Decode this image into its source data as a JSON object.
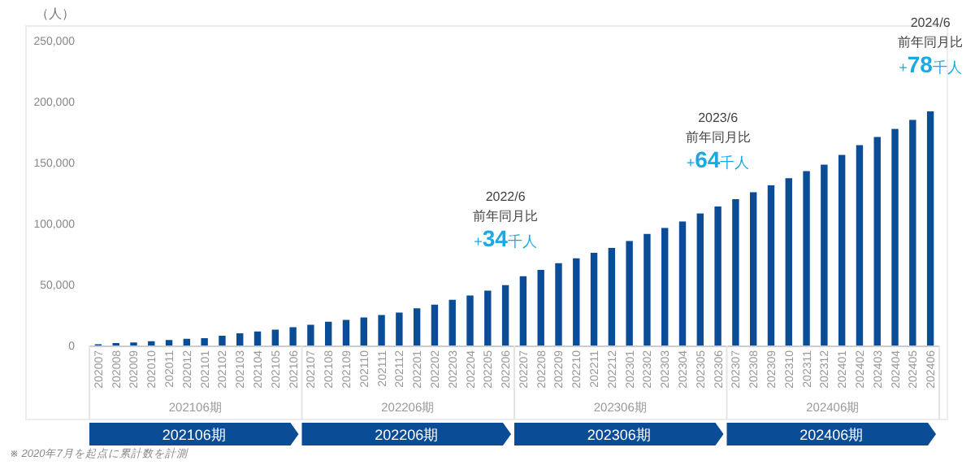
{
  "chart_data": {
    "type": "bar",
    "ylabel": "（人）",
    "categories": [
      "202007",
      "202008",
      "202009",
      "202010",
      "202011",
      "202012",
      "202101",
      "202102",
      "202103",
      "202104",
      "202105",
      "202106",
      "202107",
      "202108",
      "202109",
      "202110",
      "202111",
      "202112",
      "202201",
      "202202",
      "202203",
      "202204",
      "202205",
      "202206",
      "202207",
      "202208",
      "202209",
      "202210",
      "202211",
      "202212",
      "202301",
      "202302",
      "202303",
      "202304",
      "202305",
      "202306",
      "202307",
      "202308",
      "202309",
      "202310",
      "202311",
      "202312",
      "202401",
      "202402",
      "202403",
      "202404",
      "202405",
      "202406"
    ],
    "values": [
      1000,
      2000,
      2500,
      3500,
      4500,
      5500,
      6000,
      8000,
      10000,
      11500,
      13000,
      15000,
      17000,
      19500,
      21000,
      23000,
      25000,
      27000,
      30500,
      33500,
      37500,
      41000,
      45000,
      49500,
      56800,
      62000,
      67500,
      71500,
      76000,
      80000,
      85700,
      91500,
      96400,
      101700,
      108300,
      114000,
      120000,
      125700,
      131400,
      137200,
      143000,
      148300,
      156300,
      164300,
      171000,
      177600,
      185000,
      192000
    ],
    "color": "#0b4c96",
    "ylim": [
      0,
      250000
    ],
    "yticks": [
      0,
      {
        "value": 50000,
        "label": "50,000"
      },
      {
        "value": 100000,
        "label": "100,000"
      },
      {
        "value": 150000,
        "label": "150,000"
      },
      {
        "value": 200000,
        "label": "200,000"
      },
      {
        "value": 250000,
        "label": "250,000"
      }
    ],
    "grid": false,
    "annotations": [
      {
        "text": "2022/6\n前年同月比\n+34千人",
        "x": "202206",
        "y": 49500
      },
      {
        "text": "2023/6\n前年同月比\n+64千人",
        "x": "202306",
        "y": 114000
      },
      {
        "text": "2024/6\n前年同月比\n+78千人",
        "x": "202406",
        "y": 192000
      },
      "202106期",
      "202206期",
      "202306期",
      "202406期",
      "※ 2020年7月を起点に累計数を計測"
    ]
  }
}
